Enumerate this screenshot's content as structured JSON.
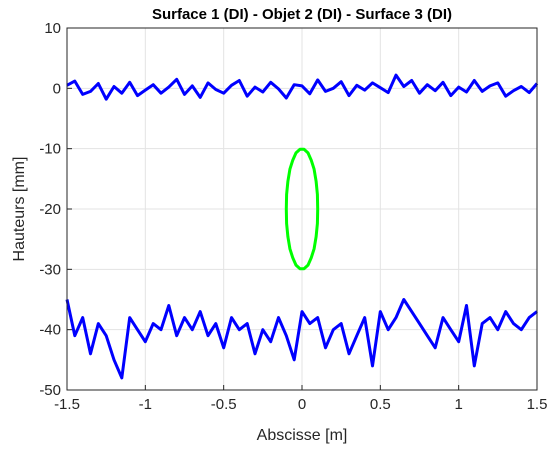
{
  "chart_data": {
    "type": "line",
    "title": "Surface 1 (DI) - Objet 2 (DI) - Surface 3 (DI)",
    "xlabel": "Abscisse [m]",
    "ylabel": "Hauteurs [mm]",
    "xlim": [
      -1.5,
      1.5
    ],
    "ylim": [
      -50,
      10
    ],
    "xticks": [
      -1.5,
      -1,
      -0.5,
      0,
      0.5,
      1,
      1.5
    ],
    "xtick_labels": [
      "-1.5",
      "-1",
      "-0.5",
      "0",
      "0.5",
      "1",
      "1.5"
    ],
    "yticks": [
      -50,
      -40,
      -30,
      -20,
      -10,
      0,
      10
    ],
    "ytick_labels": [
      "-50",
      "-40",
      "-30",
      "-20",
      "-10",
      "0",
      "10"
    ],
    "grid": true,
    "colors": {
      "surface": "#0000ff",
      "object": "#00ff00",
      "grid": "#e3e3e3",
      "axis": "#262626"
    },
    "series": [
      {
        "x": [
          -1.5,
          -1.45,
          -1.4,
          -1.35,
          -1.3,
          -1.25,
          -1.2,
          -1.15,
          -1.1,
          -1.05,
          -1.0,
          -0.95,
          -0.9,
          -0.85,
          -0.8,
          -0.75,
          -0.7,
          -0.65,
          -0.6,
          -0.55,
          -0.5,
          -0.45,
          -0.4,
          -0.35,
          -0.3,
          -0.25,
          -0.2,
          -0.15,
          -0.1,
          -0.05,
          0.0,
          0.05,
          0.1,
          0.15,
          0.2,
          0.25,
          0.3,
          0.35,
          0.4,
          0.45,
          0.5,
          0.55,
          0.6,
          0.65,
          0.7,
          0.75,
          0.8,
          0.85,
          0.9,
          0.95,
          1.0,
          1.05,
          1.1,
          1.15,
          1.2,
          1.25,
          1.3,
          1.35,
          1.4,
          1.45,
          1.5
        ],
        "y": [
          0.5,
          1.2,
          -1.0,
          -0.5,
          0.8,
          -1.8,
          0.3,
          -0.8,
          1.0,
          -1.2,
          -0.3,
          0.6,
          -0.8,
          0.2,
          1.5,
          -1.0,
          0.4,
          -1.5,
          0.9,
          -0.2,
          -0.8,
          0.5,
          1.3,
          -1.3,
          0.2,
          -0.6,
          1.0,
          -0.1,
          -1.6,
          0.6,
          0.4,
          -0.9,
          1.4,
          -0.5,
          0.0,
          1.1,
          -1.2,
          0.5,
          -0.3,
          0.9,
          0.1,
          -0.7,
          2.2,
          0.3,
          1.3,
          -0.8,
          0.6,
          -0.4,
          1.0,
          -1.2,
          0.2,
          -0.6,
          1.3,
          -0.5,
          0.4,
          0.9,
          -1.3,
          -0.4,
          0.3,
          -0.7,
          0.8
        ]
      },
      {
        "x": [
          -1.5,
          -1.45,
          -1.4,
          -1.35,
          -1.3,
          -1.25,
          -1.2,
          -1.15,
          -1.1,
          -1.05,
          -1.0,
          -0.95,
          -0.9,
          -0.85,
          -0.8,
          -0.75,
          -0.7,
          -0.65,
          -0.6,
          -0.55,
          -0.5,
          -0.45,
          -0.4,
          -0.35,
          -0.3,
          -0.25,
          -0.2,
          -0.15,
          -0.1,
          -0.05,
          0.0,
          0.05,
          0.1,
          0.15,
          0.2,
          0.25,
          0.3,
          0.35,
          0.4,
          0.45,
          0.5,
          0.55,
          0.6,
          0.65,
          0.7,
          0.75,
          0.8,
          0.85,
          0.9,
          0.95,
          1.0,
          1.05,
          1.1,
          1.15,
          1.2,
          1.25,
          1.3,
          1.35,
          1.4,
          1.45,
          1.5
        ],
        "y": [
          -35,
          -41,
          -38,
          -44,
          -39,
          -41,
          -45,
          -48,
          -38,
          -40,
          -42,
          -39,
          -40,
          -36,
          -41,
          -38,
          -40,
          -37,
          -41,
          -39,
          -43,
          -38,
          -40,
          -39,
          -44,
          -40,
          -42,
          -38,
          -41,
          -45,
          -37,
          -39,
          -38,
          -43,
          -40,
          -39,
          -44,
          -41,
          -38,
          -46,
          -37,
          -40,
          -38,
          -35,
          -37,
          -39,
          -41,
          -43,
          -38,
          -40,
          -42,
          -36,
          -46,
          -39,
          -38,
          -40,
          -37,
          -39,
          -40,
          -38,
          -37
        ]
      },
      {
        "x": [
          0.1,
          0.098,
          0.09,
          0.077,
          0.059,
          0.038,
          0.013,
          -0.013,
          -0.038,
          -0.059,
          -0.077,
          -0.09,
          -0.098,
          -0.1,
          -0.098,
          -0.09,
          -0.077,
          -0.059,
          -0.038,
          -0.013,
          0.013,
          0.038,
          0.059,
          0.077,
          0.09,
          0.098,
          0.1
        ],
        "y": [
          -20,
          -17.6,
          -15.4,
          -13.4,
          -11.9,
          -10.7,
          -10.1,
          -10.1,
          -10.7,
          -11.9,
          -13.4,
          -15.4,
          -17.6,
          -20,
          -22.4,
          -24.6,
          -26.6,
          -28.1,
          -29.3,
          -29.9,
          -29.9,
          -29.3,
          -28.1,
          -26.6,
          -24.6,
          -22.4,
          -20
        ]
      }
    ]
  }
}
